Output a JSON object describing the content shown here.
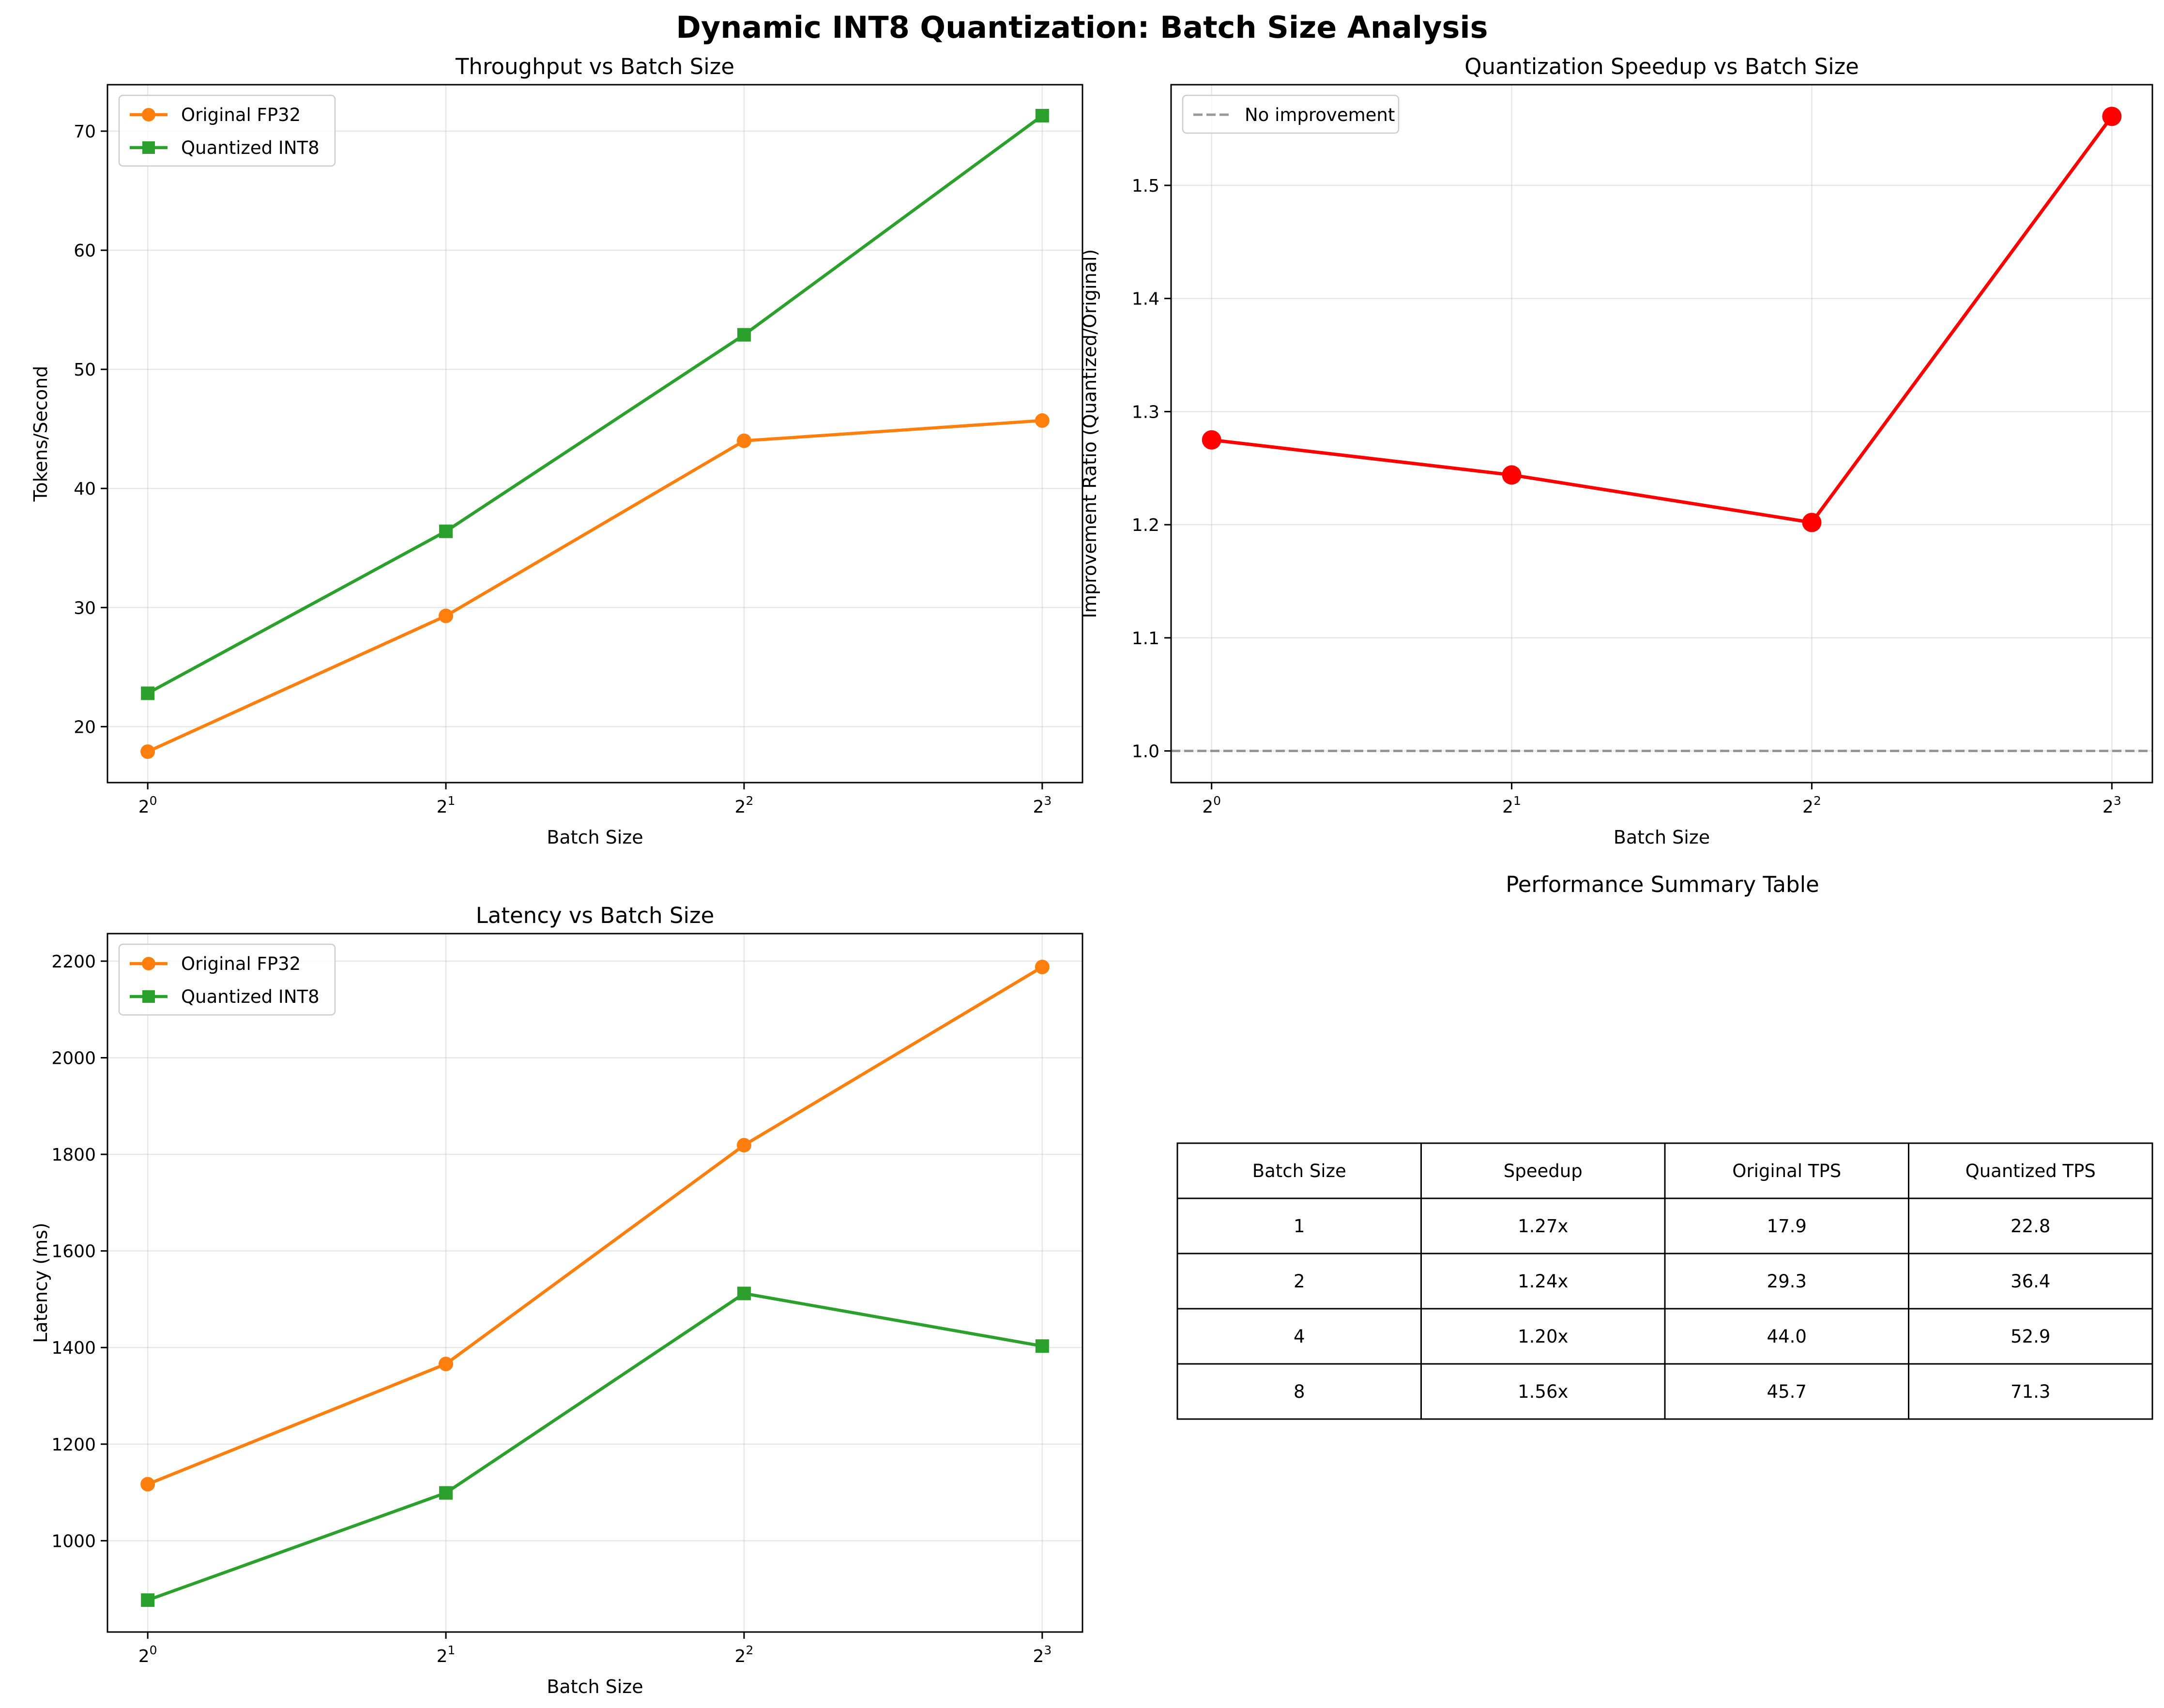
{
  "figure": {
    "title": "Dynamic INT8 Quantization: Batch Size Analysis"
  },
  "chart_data": [
    {
      "type": "line",
      "title": "Throughput vs Batch Size",
      "xlabel": "Batch Size",
      "ylabel": "Tokens/Second",
      "xscale": "log2",
      "x": [
        1,
        2,
        4,
        8
      ],
      "xticks": [
        {
          "base": "2",
          "exp": "0"
        },
        {
          "base": "2",
          "exp": "1"
        },
        {
          "base": "2",
          "exp": "2"
        },
        {
          "base": "2",
          "exp": "3"
        }
      ],
      "ylim": [
        15.3,
        73.9
      ],
      "yticks": [
        "20",
        "30",
        "40",
        "50",
        "60",
        "70"
      ],
      "grid": true,
      "legend": "top-left",
      "series": [
        {
          "name": "Original FP32",
          "color": "#ff7f0e",
          "marker": "circle",
          "values": [
            17.9,
            29.3,
            44.0,
            45.7
          ]
        },
        {
          "name": "Quantized INT8",
          "color": "#2ca02c",
          "marker": "square",
          "values": [
            22.8,
            36.4,
            52.9,
            71.3
          ]
        }
      ]
    },
    {
      "type": "line",
      "title": "Quantization Speedup vs Batch Size",
      "xlabel": "Batch Size",
      "ylabel": "Improvement Ratio (Quantized/Original)",
      "xscale": "log2",
      "x": [
        1,
        2,
        4,
        8
      ],
      "xticks": [
        {
          "base": "2",
          "exp": "0"
        },
        {
          "base": "2",
          "exp": "1"
        },
        {
          "base": "2",
          "exp": "2"
        },
        {
          "base": "2",
          "exp": "3"
        }
      ],
      "ylim": [
        0.972,
        1.589
      ],
      "yticks": [
        "1.0",
        "1.1",
        "1.2",
        "1.3",
        "1.4",
        "1.5"
      ],
      "grid": true,
      "legend": "top-left",
      "reference_line": {
        "y": 1.0,
        "label": "No improvement",
        "color": "#808080",
        "style": "dashed"
      },
      "series": [
        {
          "name": "",
          "color": "#ff0000",
          "marker": "circle",
          "values": [
            1.275,
            1.244,
            1.202,
            1.561
          ]
        }
      ]
    },
    {
      "type": "line",
      "title": "Latency vs Batch Size",
      "xlabel": "Batch Size",
      "ylabel": "Latency (ms)",
      "xscale": "log2",
      "x": [
        1,
        2,
        4,
        8
      ],
      "xticks": [
        {
          "base": "2",
          "exp": "0"
        },
        {
          "base": "2",
          "exp": "1"
        },
        {
          "base": "2",
          "exp": "2"
        },
        {
          "base": "2",
          "exp": "3"
        }
      ],
      "ylim": [
        811,
        2257
      ],
      "yticks": [
        "1000",
        "1200",
        "1400",
        "1600",
        "1800",
        "2000",
        "2200"
      ],
      "grid": true,
      "legend": "top-left",
      "series": [
        {
          "name": "Original FP32",
          "color": "#ff7f0e",
          "marker": "circle",
          "values": [
            1117,
            1366,
            1819,
            2188
          ]
        },
        {
          "name": "Quantized INT8",
          "color": "#2ca02c",
          "marker": "square",
          "values": [
            877,
            1099,
            1512,
            1403
          ]
        }
      ]
    },
    {
      "type": "table",
      "title": "Performance Summary Table",
      "columns": [
        "Batch Size",
        "Speedup",
        "Original TPS",
        "Quantized TPS"
      ],
      "rows": [
        [
          "1",
          "1.27x",
          "17.9",
          "22.8"
        ],
        [
          "2",
          "1.24x",
          "29.3",
          "36.4"
        ],
        [
          "4",
          "1.20x",
          "44.0",
          "52.9"
        ],
        [
          "8",
          "1.56x",
          "45.7",
          "71.3"
        ]
      ]
    }
  ]
}
